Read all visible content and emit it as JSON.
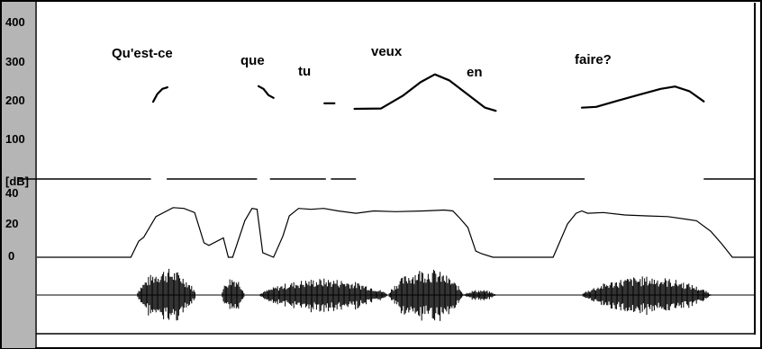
{
  "chart_data": [
    {
      "type": "line",
      "panel": "pitch",
      "ylim": [
        0,
        400
      ],
      "y_ticks": [
        "400",
        "300",
        "200",
        "100"
      ],
      "words": [
        "Qu'est-ce",
        "que",
        "tu",
        "veux",
        "en",
        "faire?"
      ],
      "series": [
        {
          "x": [
            0.162,
            0.168,
            0.175,
            0.182
          ],
          "y": [
            195,
            215,
            228,
            232
          ]
        },
        {
          "x": [
            0.309,
            0.316,
            0.323,
            0.33
          ],
          "y": [
            235,
            228,
            212,
            205
          ]
        },
        {
          "x": [
            0.401,
            0.415
          ],
          "y": [
            191,
            191
          ]
        },
        {
          "x": [
            0.443,
            0.48,
            0.51,
            0.535,
            0.555,
            0.575,
            0.6,
            0.625,
            0.64
          ],
          "y": [
            177,
            178,
            210,
            245,
            265,
            250,
            215,
            180,
            172
          ]
        },
        {
          "x": [
            0.76,
            0.78,
            0.81,
            0.84,
            0.87,
            0.89,
            0.91,
            0.93
          ],
          "y": [
            180,
            182,
            198,
            213,
            228,
            234,
            222,
            196
          ]
        }
      ]
    },
    {
      "type": "line",
      "panel": "intensity",
      "ylabel": "[dB]",
      "y_ticks": [
        "40",
        "20",
        "0"
      ],
      "ylim": [
        0,
        40
      ],
      "gaps": [
        [
          0.159,
          0.181
        ],
        [
          0.307,
          0.325
        ],
        [
          0.403,
          0.41
        ],
        [
          0.445,
          0.637
        ],
        [
          0.764,
          0.93
        ]
      ],
      "series": [
        {
          "x": [
            0,
            0.131,
            0.142,
            0.149,
            0.166,
            0.19,
            0.205,
            0.22,
            0.233,
            0.24,
            0.26,
            0.267,
            0.273,
            0.29,
            0.3,
            0.307,
            0.315,
            0.33,
            0.343,
            0.352,
            0.365,
            0.382,
            0.4,
            0.42,
            0.445,
            0.47,
            0.5,
            0.54,
            0.568,
            0.58,
            0.59,
            0.601,
            0.612,
            0.62,
            0.636,
            0.648,
            0.66,
            0.69,
            0.72,
            0.74,
            0.752,
            0.76,
            0.768,
            0.79,
            0.82,
            0.85,
            0.88,
            0.92,
            0.94,
            0.955,
            0.97,
            1.0
          ],
          "y": [
            0,
            0,
            10,
            12,
            25,
            30,
            30,
            27,
            9,
            7,
            12,
            0,
            0,
            22,
            30,
            29,
            3,
            0,
            13,
            25,
            30,
            29,
            30,
            28,
            27,
            28,
            28,
            28,
            29,
            28,
            24,
            18,
            4,
            2,
            0,
            0,
            0,
            0,
            0,
            20,
            27,
            28,
            27,
            27,
            26,
            25,
            25,
            22,
            16,
            8,
            0,
            0
          ]
        }
      ]
    },
    {
      "type": "area",
      "panel": "waveform",
      "bursts": [
        {
          "start": 0.139,
          "end": 0.222,
          "peak": 1.0
        },
        {
          "start": 0.257,
          "end": 0.29,
          "peak": 0.7
        },
        {
          "start": 0.31,
          "end": 0.49,
          "peak": 0.62
        },
        {
          "start": 0.49,
          "end": 0.595,
          "peak": 1.0
        },
        {
          "start": 0.595,
          "end": 0.64,
          "peak": 0.2
        },
        {
          "start": 0.76,
          "end": 0.94,
          "peak": 0.7
        }
      ]
    }
  ]
}
